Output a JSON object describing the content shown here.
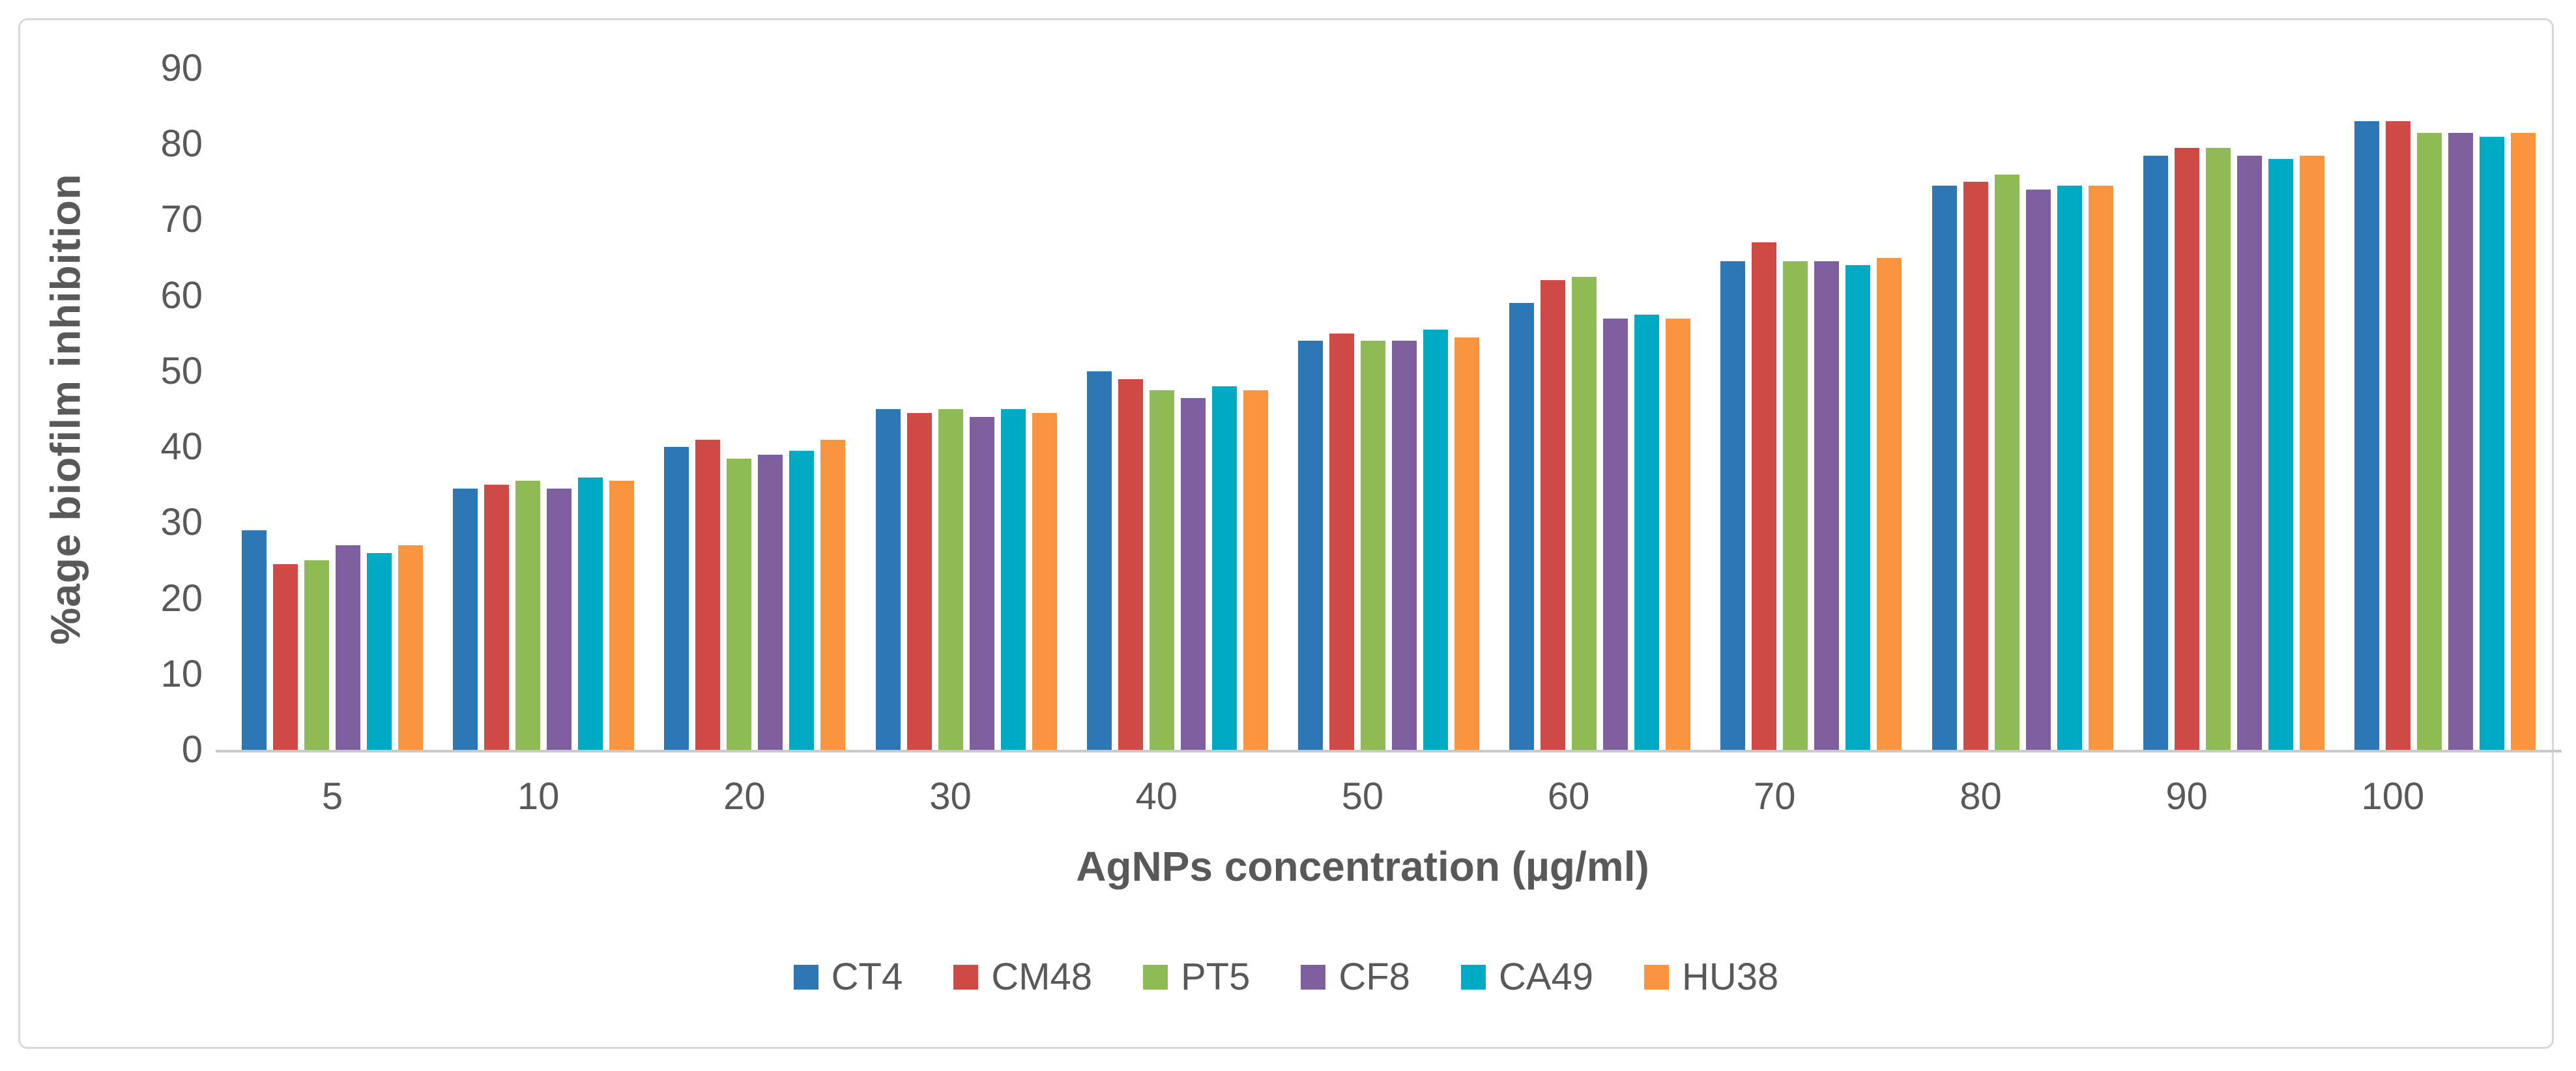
{
  "figure": {
    "background": "#ffffff",
    "border_color": "#d9d9d9",
    "axis_text_color": "#595959",
    "axis_line_color": "#c9c9c9"
  },
  "chart_data": {
    "type": "bar",
    "title": "",
    "xlabel": "AgNPs concentration (µg/ml)",
    "ylabel": "%age biofilm inhibition",
    "ylim": [
      0,
      90
    ],
    "y_ticks": [
      0,
      10,
      20,
      30,
      40,
      50,
      60,
      70,
      80,
      90
    ],
    "grid": "off",
    "legend_position": "bottom",
    "categories": [
      "5",
      "10",
      "20",
      "30",
      "40",
      "50",
      "60",
      "70",
      "80",
      "90",
      "100"
    ],
    "series": [
      {
        "name": "CT4",
        "color": "#2e77b5",
        "values": [
          29,
          34.5,
          40,
          45,
          50,
          54,
          59,
          64.5,
          74.5,
          78.5,
          83
        ]
      },
      {
        "name": "CM48",
        "color": "#d04a45",
        "values": [
          24.5,
          35,
          41,
          44.5,
          49,
          55,
          62,
          67,
          75,
          79.5,
          83
        ]
      },
      {
        "name": "PT5",
        "color": "#8ebb55",
        "values": [
          25,
          35.5,
          38.5,
          45,
          47.5,
          54,
          62.5,
          64.5,
          76,
          79.5,
          81.5
        ]
      },
      {
        "name": "CF8",
        "color": "#7e60a0",
        "values": [
          27,
          34.5,
          39,
          44,
          46.5,
          54,
          57,
          64.5,
          74,
          78.5,
          81.5
        ]
      },
      {
        "name": "CA49",
        "color": "#00aac4",
        "values": [
          26,
          36,
          39.5,
          45,
          48,
          55.5,
          57.5,
          64,
          74.5,
          78,
          81
        ]
      },
      {
        "name": "HU38",
        "color": "#f9953f",
        "values": [
          27,
          35.5,
          41,
          44.5,
          47.5,
          54.5,
          57,
          65,
          74.5,
          78.5,
          81.5
        ]
      }
    ]
  }
}
